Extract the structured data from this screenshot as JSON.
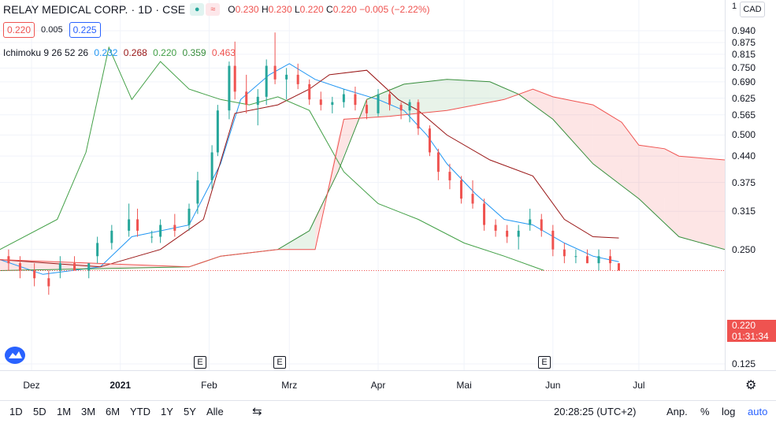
{
  "header": {
    "symbol": "RELAY MEDICAL CORP. · 1D · CSE",
    "open_label": "O",
    "open": "0.230",
    "high_label": "H",
    "high": "0.230",
    "low_label": "L",
    "low": "0.220",
    "close_label": "C",
    "close": "0.220",
    "change": "−0.005 (−2.22%)",
    "bid": "0.220",
    "spread": "0.005",
    "ask": "0.225",
    "currency": "CAD",
    "colors": {
      "down": "#ef5350",
      "up": "#26a69a",
      "ask": "#2962ff"
    }
  },
  "indicator": {
    "name": "Ichimoku 9 26 52 26",
    "v1": "0.232",
    "v2": "0.268",
    "v3": "0.220",
    "v4": "0.359",
    "v5": "0.463",
    "colors": {
      "conversion": "#2196f3",
      "base": "#991515",
      "lagging": "#43a047",
      "spanA": "#388e3c",
      "spanB": "#ef5350"
    }
  },
  "yaxis": {
    "top_tick": "1",
    "ticks": [
      "0.940",
      "0.875",
      "0.815",
      "0.750",
      "0.690",
      "0.625",
      "0.565",
      "0.500",
      "0.440",
      "0.375",
      "0.315",
      "0.250",
      "0.125"
    ]
  },
  "price_tag": {
    "price": "0.220",
    "countdown": "01:31:34"
  },
  "xaxis": {
    "ticks": [
      "Dez",
      "2021",
      "Feb",
      "Mrz",
      "Apr",
      "Mai",
      "Jun",
      "Jul"
    ]
  },
  "events": [
    "E",
    "E",
    "E"
  ],
  "toolbar": {
    "ranges": [
      "1D",
      "5D",
      "1M",
      "3M",
      "6M",
      "YTD",
      "1Y",
      "5Y",
      "Alle"
    ],
    "time": "20:28:25 (UTC+2)",
    "adj": "Anp.",
    "pct": "%",
    "log": "log",
    "auto": "auto"
  },
  "chart_data": {
    "type": "candlestick",
    "title": "RELAY MEDICAL CORP. · 1D · CSE",
    "ylim": [
      0.1,
      1.0
    ],
    "y_scale": "log",
    "x_range": [
      "2020-11-20",
      "2021-07-31"
    ],
    "grid": true,
    "candles": [
      {
        "d": "2020-11-23",
        "o": 0.24,
        "h": 0.25,
        "l": 0.22,
        "c": 0.23
      },
      {
        "d": "2020-11-27",
        "o": 0.23,
        "h": 0.24,
        "l": 0.21,
        "c": 0.22
      },
      {
        "d": "2020-12-02",
        "o": 0.22,
        "h": 0.23,
        "l": 0.2,
        "c": 0.21
      },
      {
        "d": "2020-12-07",
        "o": 0.21,
        "h": 0.22,
        "l": 0.19,
        "c": 0.2
      },
      {
        "d": "2020-12-11",
        "o": 0.22,
        "h": 0.24,
        "l": 0.21,
        "c": 0.23
      },
      {
        "d": "2020-12-16",
        "o": 0.23,
        "h": 0.24,
        "l": 0.22,
        "c": 0.22
      },
      {
        "d": "2020-12-21",
        "o": 0.22,
        "h": 0.23,
        "l": 0.21,
        "c": 0.23
      },
      {
        "d": "2020-12-24",
        "o": 0.24,
        "h": 0.27,
        "l": 0.23,
        "c": 0.26
      },
      {
        "d": "2020-12-29",
        "o": 0.26,
        "h": 0.29,
        "l": 0.25,
        "c": 0.28
      },
      {
        "d": "2021-01-04",
        "o": 0.28,
        "h": 0.33,
        "l": 0.27,
        "c": 0.3
      },
      {
        "d": "2021-01-07",
        "o": 0.3,
        "h": 0.32,
        "l": 0.27,
        "c": 0.28
      },
      {
        "d": "2021-01-12",
        "o": 0.27,
        "h": 0.28,
        "l": 0.26,
        "c": 0.27
      },
      {
        "d": "2021-01-15",
        "o": 0.27,
        "h": 0.3,
        "l": 0.26,
        "c": 0.29
      },
      {
        "d": "2021-01-20",
        "o": 0.29,
        "h": 0.31,
        "l": 0.27,
        "c": 0.28
      },
      {
        "d": "2021-01-25",
        "o": 0.29,
        "h": 0.33,
        "l": 0.28,
        "c": 0.32
      },
      {
        "d": "2021-01-28",
        "o": 0.33,
        "h": 0.4,
        "l": 0.31,
        "c": 0.38
      },
      {
        "d": "2021-02-02",
        "o": 0.38,
        "h": 0.47,
        "l": 0.36,
        "c": 0.45
      },
      {
        "d": "2021-02-04",
        "o": 0.45,
        "h": 0.6,
        "l": 0.44,
        "c": 0.58
      },
      {
        "d": "2021-02-08",
        "o": 0.58,
        "h": 0.78,
        "l": 0.55,
        "c": 0.76
      },
      {
        "d": "2021-02-10",
        "o": 0.76,
        "h": 0.88,
        "l": 0.62,
        "c": 0.65
      },
      {
        "d": "2021-02-14",
        "o": 0.65,
        "h": 0.72,
        "l": 0.57,
        "c": 0.6
      },
      {
        "d": "2021-02-18",
        "o": 0.6,
        "h": 0.66,
        "l": 0.53,
        "c": 0.63
      },
      {
        "d": "2021-02-21",
        "o": 0.63,
        "h": 0.79,
        "l": 0.6,
        "c": 0.76
      },
      {
        "d": "2021-02-24",
        "o": 0.76,
        "h": 0.93,
        "l": 0.68,
        "c": 0.7
      },
      {
        "d": "2021-02-28",
        "o": 0.7,
        "h": 0.75,
        "l": 0.62,
        "c": 0.72
      },
      {
        "d": "2021-03-04",
        "o": 0.72,
        "h": 0.77,
        "l": 0.66,
        "c": 0.68
      },
      {
        "d": "2021-03-08",
        "o": 0.68,
        "h": 0.7,
        "l": 0.6,
        "c": 0.62
      },
      {
        "d": "2021-03-12",
        "o": 0.62,
        "h": 0.65,
        "l": 0.58,
        "c": 0.6
      },
      {
        "d": "2021-03-16",
        "o": 0.6,
        "h": 0.63,
        "l": 0.57,
        "c": 0.61
      },
      {
        "d": "2021-03-20",
        "o": 0.61,
        "h": 0.66,
        "l": 0.59,
        "c": 0.64
      },
      {
        "d": "2021-03-24",
        "o": 0.64,
        "h": 0.67,
        "l": 0.58,
        "c": 0.6
      },
      {
        "d": "2021-03-28",
        "o": 0.6,
        "h": 0.62,
        "l": 0.55,
        "c": 0.57
      },
      {
        "d": "2021-04-01",
        "o": 0.57,
        "h": 0.66,
        "l": 0.56,
        "c": 0.64
      },
      {
        "d": "2021-04-05",
        "o": 0.64,
        "h": 0.66,
        "l": 0.58,
        "c": 0.6
      },
      {
        "d": "2021-04-09",
        "o": 0.6,
        "h": 0.61,
        "l": 0.55,
        "c": 0.58
      },
      {
        "d": "2021-04-12",
        "o": 0.58,
        "h": 0.62,
        "l": 0.54,
        "c": 0.61
      },
      {
        "d": "2021-04-15",
        "o": 0.61,
        "h": 0.62,
        "l": 0.5,
        "c": 0.52
      },
      {
        "d": "2021-04-19",
        "o": 0.52,
        "h": 0.53,
        "l": 0.44,
        "c": 0.45
      },
      {
        "d": "2021-04-22",
        "o": 0.45,
        "h": 0.46,
        "l": 0.38,
        "c": 0.4
      },
      {
        "d": "2021-04-26",
        "o": 0.4,
        "h": 0.42,
        "l": 0.36,
        "c": 0.38
      },
      {
        "d": "2021-04-30",
        "o": 0.38,
        "h": 0.39,
        "l": 0.33,
        "c": 0.34
      },
      {
        "d": "2021-05-04",
        "o": 0.35,
        "h": 0.38,
        "l": 0.32,
        "c": 0.33
      },
      {
        "d": "2021-05-08",
        "o": 0.33,
        "h": 0.34,
        "l": 0.28,
        "c": 0.29
      },
      {
        "d": "2021-05-12",
        "o": 0.29,
        "h": 0.3,
        "l": 0.27,
        "c": 0.28
      },
      {
        "d": "2021-05-16",
        "o": 0.28,
        "h": 0.29,
        "l": 0.26,
        "c": 0.27
      },
      {
        "d": "2021-05-20",
        "o": 0.27,
        "h": 0.29,
        "l": 0.25,
        "c": 0.28
      },
      {
        "d": "2021-05-24",
        "o": 0.29,
        "h": 0.32,
        "l": 0.28,
        "c": 0.3
      },
      {
        "d": "2021-05-28",
        "o": 0.3,
        "h": 0.31,
        "l": 0.27,
        "c": 0.28
      },
      {
        "d": "2021-06-01",
        "o": 0.28,
        "h": 0.29,
        "l": 0.24,
        "c": 0.25
      },
      {
        "d": "2021-06-05",
        "o": 0.25,
        "h": 0.26,
        "l": 0.23,
        "c": 0.24
      },
      {
        "d": "2021-06-09",
        "o": 0.24,
        "h": 0.25,
        "l": 0.23,
        "c": 0.24
      },
      {
        "d": "2021-06-13",
        "o": 0.24,
        "h": 0.25,
        "l": 0.23,
        "c": 0.23
      },
      {
        "d": "2021-06-17",
        "o": 0.23,
        "h": 0.25,
        "l": 0.22,
        "c": 0.24
      },
      {
        "d": "2021-06-21",
        "o": 0.24,
        "h": 0.25,
        "l": 0.22,
        "c": 0.23
      },
      {
        "d": "2021-06-24",
        "o": 0.23,
        "h": 0.23,
        "l": 0.22,
        "c": 0.22
      }
    ],
    "series": [
      {
        "name": "conversion",
        "color": "#2196f3",
        "points": [
          [
            "2020-11-20",
            0.235
          ],
          [
            "2020-12-05",
            0.215
          ],
          [
            "2020-12-25",
            0.225
          ],
          [
            "2021-01-05",
            0.27
          ],
          [
            "2021-01-25",
            0.29
          ],
          [
            "2021-02-05",
            0.42
          ],
          [
            "2021-02-12",
            0.62
          ],
          [
            "2021-02-22",
            0.72
          ],
          [
            "2021-03-01",
            0.77
          ],
          [
            "2021-03-10",
            0.7
          ],
          [
            "2021-03-20",
            0.66
          ],
          [
            "2021-04-01",
            0.62
          ],
          [
            "2021-04-10",
            0.58
          ],
          [
            "2021-04-18",
            0.5
          ],
          [
            "2021-04-25",
            0.42
          ],
          [
            "2021-05-05",
            0.35
          ],
          [
            "2021-05-15",
            0.3
          ],
          [
            "2021-05-25",
            0.29
          ],
          [
            "2021-06-05",
            0.26
          ],
          [
            "2021-06-15",
            0.24
          ],
          [
            "2021-06-24",
            0.232
          ]
        ]
      },
      {
        "name": "base",
        "color": "#991515",
        "points": [
          [
            "2020-11-20",
            0.235
          ],
          [
            "2020-12-25",
            0.225
          ],
          [
            "2021-01-15",
            0.25
          ],
          [
            "2021-01-30",
            0.3
          ],
          [
            "2021-02-10",
            0.57
          ],
          [
            "2021-02-25",
            0.6
          ],
          [
            "2021-03-08",
            0.66
          ],
          [
            "2021-03-15",
            0.72
          ],
          [
            "2021-03-28",
            0.74
          ],
          [
            "2021-04-08",
            0.62
          ],
          [
            "2021-04-15",
            0.58
          ],
          [
            "2021-04-25",
            0.5
          ],
          [
            "2021-05-10",
            0.43
          ],
          [
            "2021-05-25",
            0.39
          ],
          [
            "2021-06-05",
            0.3
          ],
          [
            "2021-06-15",
            0.27
          ],
          [
            "2021-06-24",
            0.268
          ]
        ]
      },
      {
        "name": "lagging",
        "color": "#43a047",
        "points": [
          [
            "2020-11-20",
            0.25
          ],
          [
            "2020-12-10",
            0.3
          ],
          [
            "2020-12-20",
            0.45
          ],
          [
            "2020-12-28",
            0.85
          ],
          [
            "2021-01-05",
            0.62
          ],
          [
            "2021-01-15",
            0.78
          ],
          [
            "2021-01-25",
            0.66
          ],
          [
            "2021-02-05",
            0.62
          ],
          [
            "2021-02-15",
            0.6
          ],
          [
            "2021-02-25",
            0.63
          ],
          [
            "2021-03-08",
            0.58
          ],
          [
            "2021-03-20",
            0.4
          ],
          [
            "2021-04-01",
            0.33
          ],
          [
            "2021-04-15",
            0.3
          ],
          [
            "2021-05-01",
            0.26
          ],
          [
            "2021-05-15",
            0.24
          ],
          [
            "2021-05-29",
            0.22
          ]
        ]
      },
      {
        "name": "spanA",
        "color": "#388e3c",
        "points": [
          [
            "2020-11-20",
            0.22
          ],
          [
            "2021-01-25",
            0.225
          ],
          [
            "2021-02-05",
            0.24
          ],
          [
            "2021-02-25",
            0.25
          ],
          [
            "2021-03-08",
            0.28
          ],
          [
            "2021-03-18",
            0.4
          ],
          [
            "2021-03-28",
            0.62
          ],
          [
            "2021-04-10",
            0.68
          ],
          [
            "2021-04-25",
            0.7
          ],
          [
            "2021-05-10",
            0.69
          ],
          [
            "2021-05-20",
            0.64
          ],
          [
            "2021-06-01",
            0.55
          ],
          [
            "2021-06-15",
            0.42
          ],
          [
            "2021-07-01",
            0.34
          ],
          [
            "2021-07-15",
            0.27
          ],
          [
            "2021-07-31",
            0.25
          ]
        ]
      },
      {
        "name": "spanB",
        "color": "#ef5350",
        "points": [
          [
            "2020-11-20",
            0.235
          ],
          [
            "2021-01-25",
            0.225
          ],
          [
            "2021-02-05",
            0.24
          ],
          [
            "2021-02-25",
            0.25
          ],
          [
            "2021-03-10",
            0.25
          ],
          [
            "2021-03-20",
            0.55
          ],
          [
            "2021-04-05",
            0.56
          ],
          [
            "2021-04-25",
            0.58
          ],
          [
            "2021-05-15",
            0.62
          ],
          [
            "2021-05-25",
            0.66
          ],
          [
            "2021-06-01",
            0.63
          ],
          [
            "2021-06-15",
            0.6
          ],
          [
            "2021-06-25",
            0.54
          ],
          [
            "2021-07-01",
            0.47
          ],
          [
            "2021-07-10",
            0.46
          ],
          [
            "2021-07-15",
            0.44
          ],
          [
            "2021-07-31",
            0.43
          ]
        ]
      }
    ]
  }
}
